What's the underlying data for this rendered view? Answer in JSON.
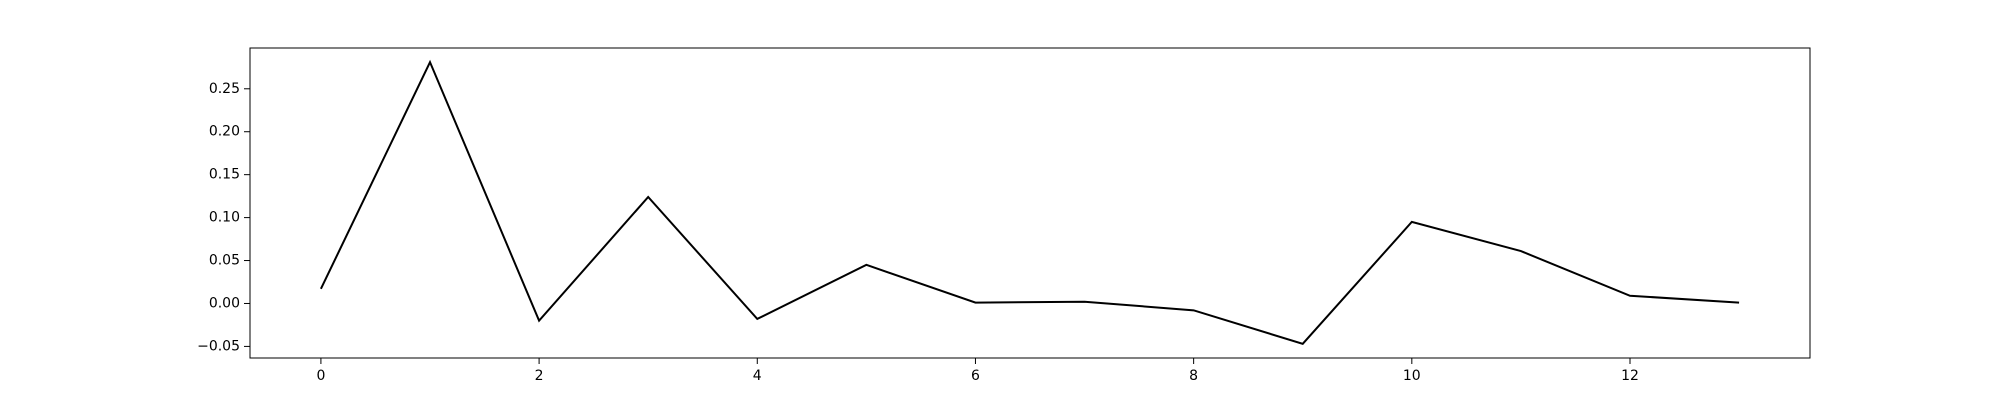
{
  "chart_data": {
    "type": "line",
    "title": "",
    "xlabel": "",
    "ylabel": "",
    "x": [
      0,
      1,
      2,
      3,
      4,
      5,
      6,
      7,
      8,
      9,
      10,
      11,
      12,
      13
    ],
    "series": [
      {
        "values": [
          0.017,
          0.281,
          -0.02,
          0.124,
          -0.018,
          0.045,
          0.001,
          0.002,
          -0.008,
          -0.047,
          0.095,
          0.061,
          0.009,
          0.001
        ],
        "color": "#000000"
      }
    ],
    "xlim": [
      -0.65,
      13.65
    ],
    "ylim": [
      -0.0635,
      0.2975
    ],
    "x_ticks": [
      0,
      2,
      4,
      6,
      8,
      10,
      12
    ],
    "x_tick_labels": [
      "0",
      "2",
      "4",
      "6",
      "8",
      "10",
      "12"
    ],
    "y_ticks": [
      -0.05,
      0.0,
      0.05,
      0.1,
      0.15,
      0.2,
      0.25
    ],
    "y_tick_labels": [
      "−0.05",
      "0.00",
      "0.05",
      "0.10",
      "0.15",
      "0.20",
      "0.25"
    ],
    "grid": false,
    "legend": "none"
  }
}
